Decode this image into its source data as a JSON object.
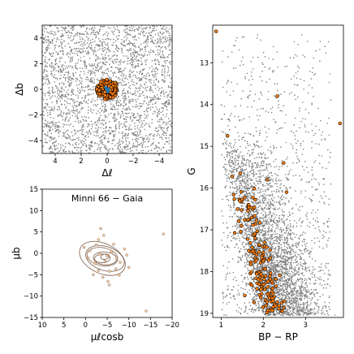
{
  "chart_data": [
    {
      "id": "spatial",
      "type": "scatter",
      "xlabel": "Δℓ",
      "ylabel": "Δb",
      "xlim": [
        5,
        -5
      ],
      "ylim": [
        -5,
        5
      ],
      "xticks": [
        -4,
        -2,
        0,
        2,
        4
      ],
      "yticks": [
        -4,
        -2,
        0,
        2,
        4
      ],
      "series": [
        {
          "role": "field",
          "color": "#7f7f7f",
          "n_points": 2600,
          "distribution": "uniform"
        },
        {
          "role": "members",
          "color": "#ff7f0e",
          "edge": "#000000",
          "center": [
            0,
            0
          ],
          "radius": 0.8,
          "n_points": 150
        },
        {
          "role": "core",
          "color": "#1f77b4",
          "center": [
            0,
            0
          ],
          "radius": 0.2,
          "n_points": 8
        }
      ]
    },
    {
      "id": "proper-motion",
      "type": "scatter",
      "title": "Minni 66  −  Gaia",
      "xlabel": "μℓcosb",
      "ylabel": "μb",
      "xlim": [
        10,
        -20
      ],
      "ylim": [
        -15,
        15
      ],
      "xticks": [
        10,
        5,
        0,
        -5,
        -10,
        -15,
        -20
      ],
      "yticks": [
        -15,
        -10,
        -5,
        0,
        5,
        10,
        15
      ],
      "contours": {
        "center": [
          -4.2,
          -1.0
        ],
        "radii_x": [
          1.0,
          1.8,
          2.7,
          3.6,
          4.6,
          5.6
        ],
        "radii_y": [
          0.6,
          1.0,
          1.5,
          2.1,
          2.8,
          3.5
        ],
        "color": "#8c6d5a"
      },
      "series": [
        {
          "role": "members",
          "color": "#ff7f0e",
          "points": [
            [
              -3.5,
              5.8
            ],
            [
              -4.2,
              4.2
            ],
            [
              -3.0,
              3.2
            ],
            [
              -6.5,
              2.1
            ],
            [
              -2.5,
              2.0
            ],
            [
              0.3,
              1.4
            ],
            [
              -1.0,
              0.6
            ],
            [
              -0.6,
              -1.1
            ],
            [
              -2.2,
              -2.4
            ],
            [
              -3.0,
              -4.0
            ],
            [
              -5.5,
              -4.2
            ],
            [
              -7.0,
              -3.6
            ],
            [
              -8.0,
              -2.1
            ],
            [
              -10.0,
              -3.3
            ],
            [
              -9.5,
              -0.4
            ],
            [
              -9.0,
              1.0
            ],
            [
              -6.0,
              0.3
            ],
            [
              -5.0,
              -0.6
            ],
            [
              -4.5,
              -1.8
            ],
            [
              -3.2,
              -0.2
            ],
            [
              -7.2,
              -1.2
            ],
            [
              -4.0,
              -5.6
            ],
            [
              -5.5,
              -7.4
            ],
            [
              -18.0,
              4.5
            ],
            [
              -14.0,
              -13.5
            ],
            [
              -5.2,
              -6.6
            ],
            [
              -7.8,
              -5.1
            ],
            [
              -1.8,
              -5.0
            ]
          ]
        }
      ]
    },
    {
      "id": "cmd",
      "type": "scatter",
      "xlabel": "BP − RP",
      "ylabel": "G",
      "xlim": [
        0.8,
        3.9
      ],
      "ylim": [
        19.1,
        12.1
      ],
      "xticks": [
        1,
        2,
        3
      ],
      "yticks": [
        13,
        14,
        15,
        16,
        17,
        18,
        19
      ],
      "series": [
        {
          "role": "field",
          "color": "#7f7f7f",
          "n_points": 4000
        },
        {
          "role": "members",
          "color": "#ff7f0e",
          "edge": "#000000",
          "n_points": 160,
          "outliers": [
            [
              0.88,
              12.25
            ],
            [
              2.33,
              13.8
            ],
            [
              3.82,
              14.45
            ],
            [
              1.15,
              14.75
            ],
            [
              1.45,
              15.65
            ],
            [
              2.48,
              15.4
            ],
            [
              2.55,
              16.1
            ],
            [
              2.1,
              15.8
            ]
          ]
        }
      ]
    }
  ]
}
